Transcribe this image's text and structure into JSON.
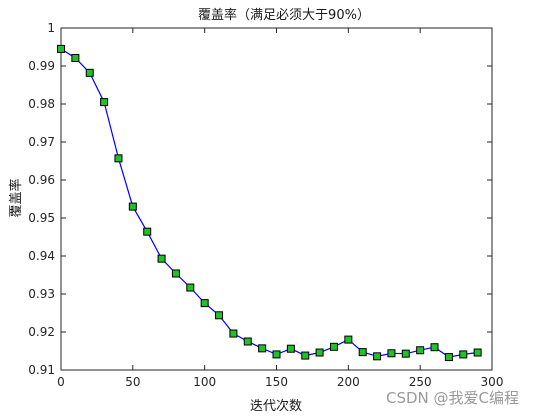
{
  "watermark": "CSDN @我爱C编程",
  "chart_data": {
    "type": "line",
    "title": "覆盖率（满足必须大于90%）",
    "xlabel": "迭代次数",
    "ylabel": "覆盖率",
    "xlim": [
      0,
      300
    ],
    "ylim": [
      0.91,
      1.0
    ],
    "xticks": [
      0,
      50,
      100,
      150,
      200,
      250,
      300
    ],
    "yticks": [
      0.91,
      0.92,
      0.93,
      0.94,
      0.95,
      0.96,
      0.97,
      0.98,
      0.99,
      1.0
    ],
    "xtick_labels": [
      "0",
      "50",
      "100",
      "150",
      "200",
      "250",
      "300"
    ],
    "ytick_labels": [
      "0.91",
      "0.92",
      "0.93",
      "0.94",
      "0.95",
      "0.96",
      "0.97",
      "0.98",
      "0.99",
      "1"
    ],
    "grid": false,
    "line_color": "#0000ff",
    "marker": "square",
    "marker_fill": "#22c02a",
    "marker_edge": "#000000",
    "series": [
      {
        "x": [
          0,
          10,
          20,
          30,
          40,
          50,
          60,
          70,
          80,
          90,
          100,
          110,
          120,
          130,
          140,
          150,
          160,
          170,
          180,
          190,
          200,
          210,
          220,
          230,
          240,
          250,
          260,
          270,
          280,
          290
        ],
        "values": [
          0.9945,
          0.9921,
          0.9882,
          0.9805,
          0.9657,
          0.953,
          0.9464,
          0.9393,
          0.9354,
          0.9317,
          0.9276,
          0.9244,
          0.9196,
          0.9175,
          0.9157,
          0.9141,
          0.9156,
          0.9138,
          0.9146,
          0.9161,
          0.918,
          0.9147,
          0.9136,
          0.9144,
          0.9143,
          0.9152,
          0.916,
          0.9134,
          0.9141,
          0.9146
        ]
      }
    ]
  }
}
